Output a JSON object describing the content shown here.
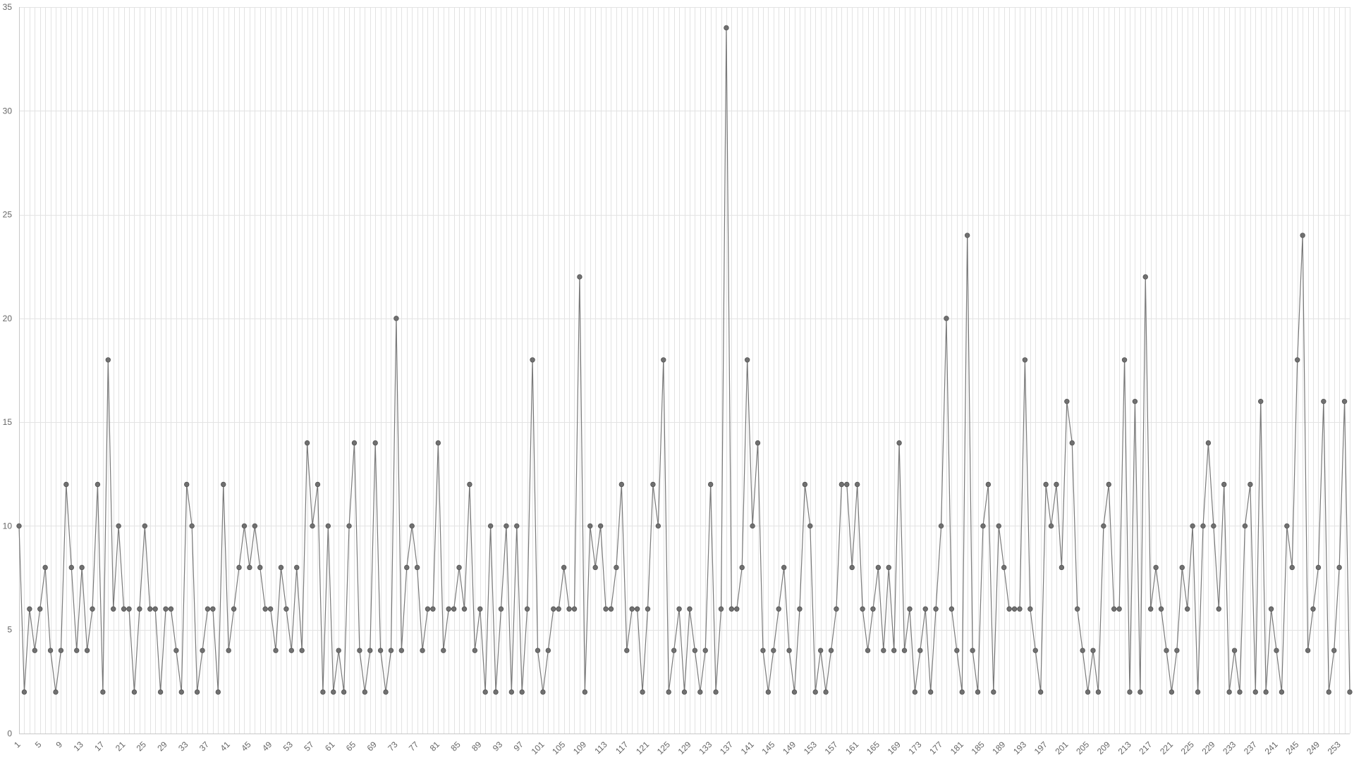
{
  "chart_data": {
    "type": "line",
    "title": "",
    "xlabel": "",
    "ylabel": "",
    "xlim": [
      1,
      255
    ],
    "ylim": [
      0,
      35
    ],
    "y_ticks": [
      "0",
      "5",
      "10",
      "15",
      "20",
      "25",
      "30",
      "35"
    ],
    "x_ticks": [
      "1",
      "5",
      "9",
      "13",
      "17",
      "21",
      "25",
      "29",
      "33",
      "37",
      "41",
      "45",
      "49",
      "53",
      "57",
      "61",
      "65",
      "69",
      "73",
      "77",
      "81",
      "85",
      "89",
      "93",
      "97",
      "101",
      "105",
      "109",
      "113",
      "117",
      "121",
      "125",
      "129",
      "133",
      "137",
      "141",
      "145",
      "149",
      "153",
      "157",
      "161",
      "165",
      "169",
      "173",
      "177",
      "181",
      "185",
      "189",
      "193",
      "197",
      "201",
      "205",
      "209",
      "213",
      "217",
      "221",
      "225",
      "229",
      "233",
      "237",
      "241",
      "245",
      "249",
      "253"
    ],
    "grid": true,
    "legend": "none",
    "colors": {
      "line": "#7a7a7a",
      "point": "#707070",
      "grid": "#e3e3e3"
    },
    "x": [
      1,
      2,
      3,
      4,
      5,
      6,
      7,
      8,
      9,
      10,
      11,
      12,
      13,
      14,
      15,
      16,
      17,
      18,
      19,
      20,
      21,
      22,
      23,
      24,
      25,
      26,
      27,
      28,
      29,
      30,
      31,
      32,
      33,
      34,
      35,
      36,
      37,
      38,
      39,
      40,
      41,
      42,
      43,
      44,
      45,
      46,
      47,
      48,
      49,
      50,
      51,
      52,
      53,
      54,
      55,
      56,
      57,
      58,
      59,
      60,
      61,
      62,
      63,
      64,
      65,
      66,
      67,
      68,
      69,
      70,
      71,
      72,
      73,
      74,
      75,
      76,
      77,
      78,
      79,
      80,
      81,
      82,
      83,
      84,
      85,
      86,
      87,
      88,
      89,
      90,
      91,
      92,
      93,
      94,
      95,
      96,
      97,
      98,
      99,
      100,
      101,
      102,
      103,
      104,
      105,
      106,
      107,
      108,
      109,
      110,
      111,
      112,
      113,
      114,
      115,
      116,
      117,
      118,
      119,
      120,
      121,
      122,
      123,
      124,
      125,
      126,
      127,
      128,
      129,
      130,
      131,
      132,
      133,
      134,
      135,
      136,
      137,
      138,
      139,
      140,
      141,
      142,
      143,
      144,
      145,
      146,
      147,
      148,
      149,
      150,
      151,
      152,
      153,
      154,
      155,
      156,
      157,
      158,
      159,
      160,
      161,
      162,
      163,
      164,
      165,
      166,
      167,
      168,
      169,
      170,
      171,
      172,
      173,
      174,
      175,
      176,
      177,
      178,
      179,
      180,
      181,
      182,
      183,
      184,
      185,
      186,
      187,
      188,
      189,
      190,
      191,
      192,
      193,
      194,
      195,
      196,
      197,
      198,
      199,
      200,
      201,
      202,
      203,
      204,
      205,
      206,
      207,
      208,
      209,
      210,
      211,
      212,
      213,
      214,
      215,
      216,
      217,
      218,
      219,
      220,
      221,
      222,
      223,
      224,
      225,
      226,
      227,
      228,
      229,
      230,
      231,
      232,
      233,
      234,
      235,
      236,
      237,
      238,
      239,
      240,
      241,
      242,
      243,
      244,
      245,
      246,
      247,
      248,
      249,
      250,
      251,
      252,
      253,
      254,
      255
    ],
    "series": [
      {
        "values": [
          10,
          2,
          6,
          4,
          6,
          8,
          4,
          2,
          4,
          12,
          8,
          4,
          8,
          4,
          6,
          12,
          2,
          18,
          6,
          10,
          6,
          6,
          2,
          6,
          10,
          6,
          6,
          2,
          6,
          6,
          4,
          2,
          12,
          10,
          2,
          4,
          6,
          6,
          2,
          12,
          4,
          6,
          8,
          10,
          8,
          10,
          8,
          6,
          6,
          4,
          8,
          6,
          4,
          8,
          4,
          14,
          10,
          12,
          2,
          10,
          2,
          4,
          2,
          10,
          14,
          4,
          2,
          4,
          14,
          4,
          2,
          4,
          20,
          4,
          8,
          10,
          8,
          4,
          6,
          6,
          14,
          4,
          6,
          6,
          8,
          6,
          12,
          4,
          6,
          2,
          10,
          2,
          6,
          10,
          2,
          10,
          2,
          6,
          18,
          4,
          2,
          4,
          6,
          6,
          8,
          6,
          6,
          22,
          2,
          10,
          8,
          10,
          6,
          6,
          8,
          12,
          4,
          6,
          6,
          2,
          6,
          12,
          10,
          18,
          2,
          4,
          6,
          2,
          6,
          4,
          2,
          4,
          12,
          2,
          6,
          34,
          6,
          6,
          8,
          18,
          10,
          14,
          4,
          2,
          4,
          6,
          8,
          4,
          2,
          6,
          12,
          10,
          2,
          4,
          2,
          4,
          6,
          12,
          12,
          8,
          12,
          6,
          4,
          6,
          8,
          4,
          8,
          4,
          14,
          4,
          6,
          2,
          4,
          6,
          2,
          6,
          10,
          20,
          6,
          4,
          2,
          24,
          4,
          2,
          10,
          12,
          2,
          10,
          8,
          6,
          6,
          6,
          18,
          6,
          4,
          2,
          12,
          10,
          12,
          8,
          16,
          14,
          6,
          4,
          2,
          4,
          2,
          10,
          12,
          6,
          6,
          18,
          2,
          16,
          2,
          22,
          6,
          8,
          6,
          4,
          2,
          4,
          8,
          6,
          10,
          2,
          10,
          14,
          10,
          6,
          12,
          2,
          4,
          2,
          10,
          12,
          2,
          16,
          2,
          6,
          4,
          2,
          10,
          8,
          18,
          24,
          4,
          6,
          8,
          16,
          2,
          4,
          8,
          16,
          2
        ]
      }
    ]
  }
}
